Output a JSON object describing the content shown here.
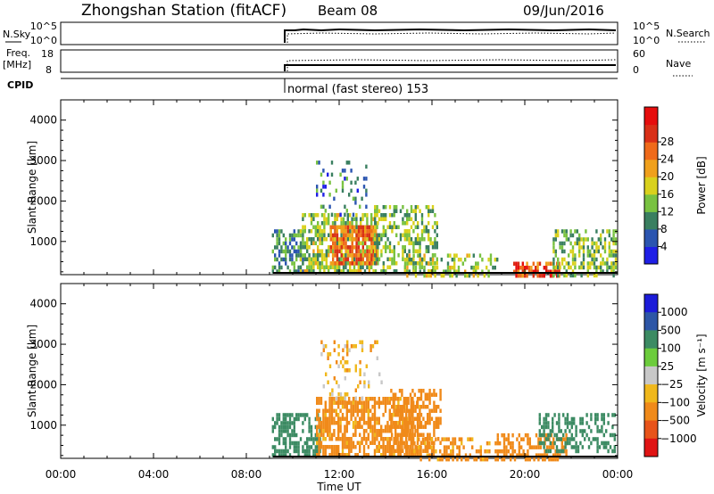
{
  "header": {
    "station": "Zhongshan Station (fitACF)",
    "beam": "Beam 08",
    "date": "09/Jun/2016"
  },
  "panels": {
    "nsky": {
      "label": "N.Sky",
      "right_label": "N.Search",
      "left_ticks": [
        "10^5",
        "10^0"
      ],
      "right_ticks": [
        "10^5",
        "10^0"
      ]
    },
    "freq": {
      "label_1": "Freq.",
      "label_2": "[MHz]",
      "right_label": "Nave",
      "left_ticks": [
        "18",
        "8"
      ],
      "right_ticks": [
        "60",
        "0"
      ]
    },
    "cpid": {
      "label": "CPID",
      "text": "normal (fast stereo) 153"
    }
  },
  "chart_data": [
    {
      "type": "heatmap",
      "name": "Power",
      "ylabel": "Slant Range [km]",
      "ylim": [
        180,
        4500
      ],
      "yticks": [
        "1000",
        "2000",
        "3000",
        "4000"
      ],
      "xlabel": "Time UT",
      "xticks": [
        "00:00",
        "04:00",
        "08:00",
        "12:00",
        "16:00",
        "20:00",
        "00:00"
      ],
      "data_start_hour": 9.15,
      "colorbar": {
        "label": "Power [dB]",
        "ticks": [
          "4",
          "8",
          "12",
          "16",
          "20",
          "24",
          "28"
        ],
        "colors": [
          "#1f1fe6",
          "#2b55b0",
          "#3a7f60",
          "#79c241",
          "#d9d11d",
          "#f0a01c",
          "#ef6a1a",
          "#d92f17",
          "#e60d0d"
        ]
      },
      "features": [
        {
          "t0": 9.1,
          "t1": 10.4,
          "r0": 250,
          "r1": 1300,
          "value": 10,
          "density": 0.55
        },
        {
          "t0": 10.3,
          "t1": 13.7,
          "r0": 300,
          "r1": 1700,
          "value": 15,
          "density": 0.6
        },
        {
          "t0": 11.6,
          "t1": 13.6,
          "r0": 500,
          "r1": 1400,
          "value": 26,
          "density": 0.75
        },
        {
          "t0": 13.5,
          "t1": 16.2,
          "r0": 300,
          "r1": 1900,
          "value": 14,
          "density": 0.45
        },
        {
          "t0": 11.0,
          "t1": 13.2,
          "r0": 1700,
          "r1": 3000,
          "value": 8,
          "density": 0.2
        },
        {
          "t0": 14.8,
          "t1": 18.8,
          "r0": 200,
          "r1": 700,
          "value": 16,
          "density": 0.4
        },
        {
          "t0": 19.5,
          "t1": 21.5,
          "r0": 200,
          "r1": 500,
          "value": 28,
          "density": 0.65
        },
        {
          "t0": 21.2,
          "t1": 23.9,
          "r0": 200,
          "r1": 1300,
          "value": 14,
          "density": 0.5
        }
      ]
    },
    {
      "type": "heatmap",
      "name": "Velocity",
      "ylabel": "Slant Range [km]",
      "ylim": [
        180,
        4500
      ],
      "yticks": [
        "1000",
        "2000",
        "3000",
        "4000"
      ],
      "xlabel": "Time UT",
      "xticks": [
        "00:00",
        "04:00",
        "08:00",
        "12:00",
        "16:00",
        "20:00",
        "00:00"
      ],
      "data_start_hour": 9.15,
      "colorbar": {
        "label": "Velocity [m s⁻¹]",
        "ticks": [
          "1000",
          "500",
          "100",
          "25",
          "−25",
          "−100",
          "−500",
          "−1000"
        ],
        "colors": [
          "#1c1cd9",
          "#2d56a6",
          "#3c8b63",
          "#6ccc3c",
          "#c8c8c8",
          "#f0b81c",
          "#f08a1a",
          "#e8541a",
          "#e01414"
        ]
      },
      "features": [
        {
          "t0": 9.1,
          "t1": 11.2,
          "r0": 250,
          "r1": 1300,
          "value": 300,
          "density": 0.6
        },
        {
          "t0": 11.0,
          "t1": 15.5,
          "r0": 300,
          "r1": 1700,
          "value": -200,
          "density": 0.65
        },
        {
          "t0": 11.2,
          "t1": 13.8,
          "r0": 1700,
          "r1": 3100,
          "value": -60,
          "density": 0.2
        },
        {
          "t0": 14.2,
          "t1": 16.4,
          "r0": 400,
          "r1": 1900,
          "value": -250,
          "density": 0.5
        },
        {
          "t0": 15.2,
          "t1": 18.5,
          "r0": 200,
          "r1": 700,
          "value": -150,
          "density": 0.35
        },
        {
          "t0": 18.7,
          "t1": 21.8,
          "r0": 200,
          "r1": 800,
          "value": -300,
          "density": 0.5
        },
        {
          "t0": 20.6,
          "t1": 23.9,
          "r0": 400,
          "r1": 1300,
          "value": 300,
          "density": 0.45
        }
      ]
    }
  ]
}
